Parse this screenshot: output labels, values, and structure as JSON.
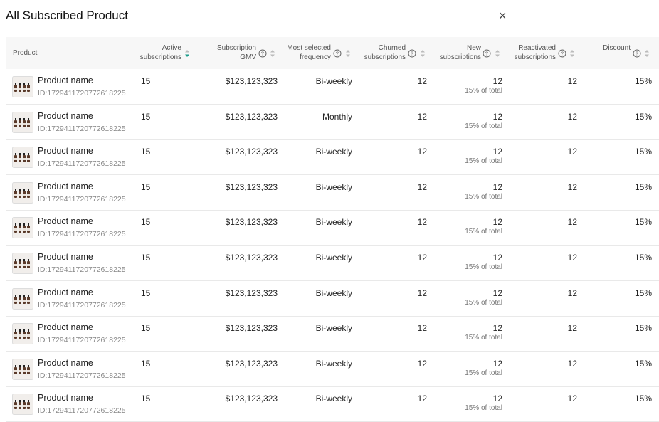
{
  "header": {
    "title": "All Subscribed Product",
    "close": "×"
  },
  "table": {
    "columns": [
      "Product",
      "Active subscriptions",
      "Subscription GMV",
      "Most selected frequency",
      "Churned subscriptions",
      "New subscriptions",
      "Reactivated subscriptions",
      "Discount"
    ],
    "rows": [
      {
        "name": "Product name",
        "id": "ID:1729411720772618225",
        "active": "15",
        "gmv": "$123,123,323",
        "frequency": "Bi-weekly",
        "churned": "12",
        "new": "12",
        "new_share": "15% of total",
        "reactivated": "12",
        "discount": "15%"
      },
      {
        "name": "Product name",
        "id": "ID:1729411720772618225",
        "active": "15",
        "gmv": "$123,123,323",
        "frequency": "Monthly",
        "churned": "12",
        "new": "12",
        "new_share": "15% of total",
        "reactivated": "12",
        "discount": "15%"
      },
      {
        "name": "Product name",
        "id": "ID:1729411720772618225",
        "active": "15",
        "gmv": "$123,123,323",
        "frequency": "Bi-weekly",
        "churned": "12",
        "new": "12",
        "new_share": "15% of total",
        "reactivated": "12",
        "discount": "15%"
      },
      {
        "name": "Product name",
        "id": "ID:1729411720772618225",
        "active": "15",
        "gmv": "$123,123,323",
        "frequency": "Bi-weekly",
        "churned": "12",
        "new": "12",
        "new_share": "15% of total",
        "reactivated": "12",
        "discount": "15%"
      },
      {
        "name": "Product name",
        "id": "ID:1729411720772618225",
        "active": "15",
        "gmv": "$123,123,323",
        "frequency": "Bi-weekly",
        "churned": "12",
        "new": "12",
        "new_share": "15% of total",
        "reactivated": "12",
        "discount": "15%"
      },
      {
        "name": "Product name",
        "id": "ID:1729411720772618225",
        "active": "15",
        "gmv": "$123,123,323",
        "frequency": "Bi-weekly",
        "churned": "12",
        "new": "12",
        "new_share": "15% of total",
        "reactivated": "12",
        "discount": "15%"
      },
      {
        "name": "Product name",
        "id": "ID:1729411720772618225",
        "active": "15",
        "gmv": "$123,123,323",
        "frequency": "Bi-weekly",
        "churned": "12",
        "new": "12",
        "new_share": "15% of total",
        "reactivated": "12",
        "discount": "15%"
      },
      {
        "name": "Product name",
        "id": "ID:1729411720772618225",
        "active": "15",
        "gmv": "$123,123,323",
        "frequency": "Bi-weekly",
        "churned": "12",
        "new": "12",
        "new_share": "15% of total",
        "reactivated": "12",
        "discount": "15%"
      },
      {
        "name": "Product name",
        "id": "ID:1729411720772618225",
        "active": "15",
        "gmv": "$123,123,323",
        "frequency": "Bi-weekly",
        "churned": "12",
        "new": "12",
        "new_share": "15% of total",
        "reactivated": "12",
        "discount": "15%"
      },
      {
        "name": "Product name",
        "id": "ID:1729411720772618225",
        "active": "15",
        "gmv": "$123,123,323",
        "frequency": "Bi-weekly",
        "churned": "12",
        "new": "12",
        "new_share": "15% of total",
        "reactivated": "12",
        "discount": "15%"
      }
    ]
  }
}
